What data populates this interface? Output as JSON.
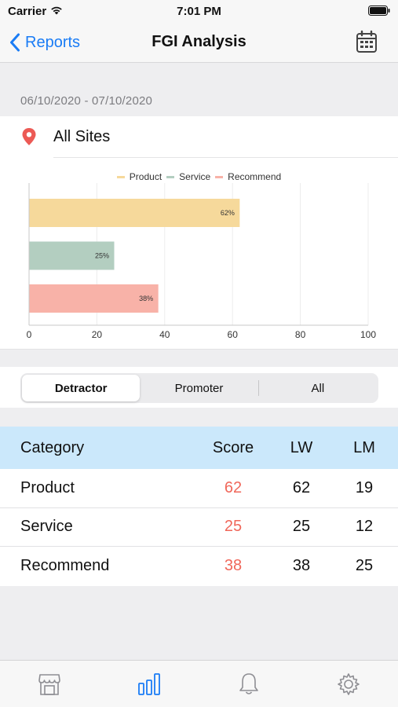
{
  "status_bar": {
    "carrier": "Carrier",
    "time": "7:01 PM"
  },
  "nav": {
    "back_label": "Reports",
    "title": "FGI Analysis"
  },
  "date_range": "06/10/2020 - 07/10/2020",
  "site": {
    "label": "All Sites"
  },
  "colors": {
    "accent": "#1a7cf5",
    "product": "#f6d99b",
    "service": "#b3cec0",
    "recommend": "#f8b2a8",
    "score": "#f0675a",
    "header_bg": "#cbe8fb",
    "pin": "#ec5a55"
  },
  "chart_data": {
    "type": "bar",
    "orientation": "horizontal",
    "categories": [
      "Product",
      "Service",
      "Recommend"
    ],
    "values": [
      62,
      25,
      38
    ],
    "data_labels": [
      "62%",
      "25%",
      "38%"
    ],
    "legend": [
      "Product",
      "Service",
      "Recommend"
    ],
    "legend_position": "top-center",
    "xlim": [
      0,
      100
    ],
    "x_ticks": [
      "0",
      "20",
      "40",
      "60",
      "80",
      "100"
    ],
    "grid": true
  },
  "segments": {
    "items": [
      "Detractor",
      "Promoter",
      "All"
    ],
    "selected": "Detractor"
  },
  "table": {
    "headers": {
      "category": "Category",
      "score": "Score",
      "lw": "LW",
      "lm": "LM"
    },
    "rows": [
      {
        "category": "Product",
        "score": "62",
        "lw": "62",
        "lm": "19"
      },
      {
        "category": "Service",
        "score": "25",
        "lw": "25",
        "lm": "12"
      },
      {
        "category": "Recommend",
        "score": "38",
        "lw": "38",
        "lm": "25"
      }
    ]
  },
  "tabs": [
    {
      "icon": "store-icon",
      "active": false
    },
    {
      "icon": "bar-chart-icon",
      "active": true
    },
    {
      "icon": "bell-icon",
      "active": false
    },
    {
      "icon": "gear-icon",
      "active": false
    }
  ]
}
